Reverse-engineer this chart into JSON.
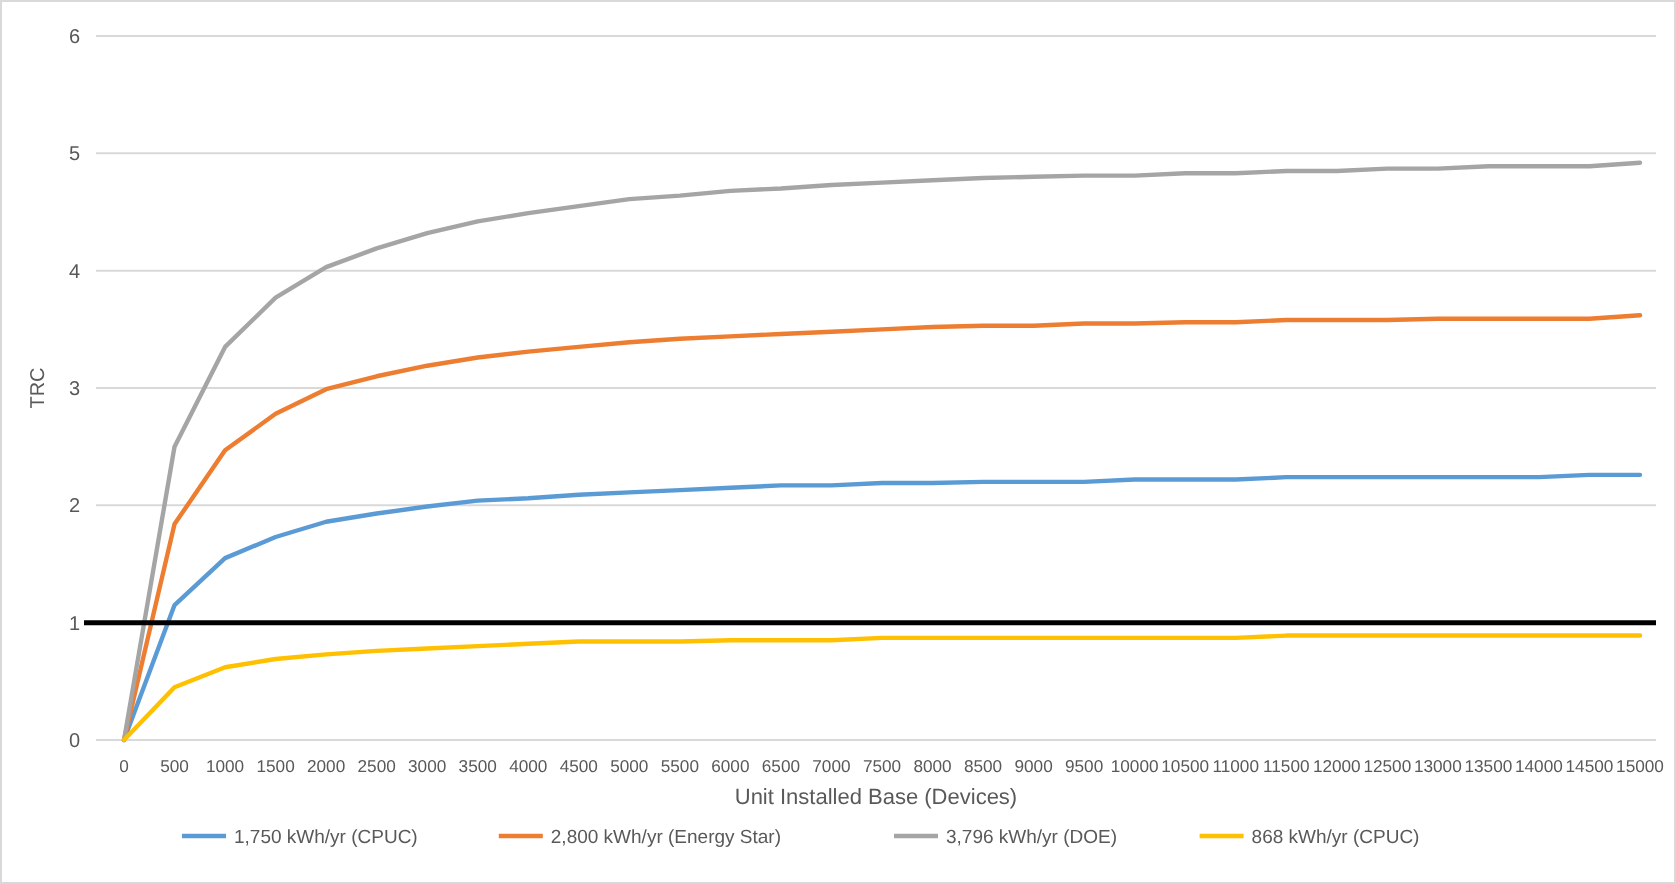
{
  "chart_data": {
    "type": "line",
    "xlabel": "Unit Installed Base (Devices)",
    "ylabel": "TRC",
    "categories": [
      "0",
      "500",
      "1000",
      "1500",
      "2000",
      "2500",
      "3000",
      "3500",
      "4000",
      "4500",
      "5000",
      "5500",
      "6000",
      "6500",
      "7000",
      "7500",
      "8000",
      "8500",
      "9000",
      "9500",
      "10000",
      "10500",
      "11000",
      "11500",
      "12000",
      "12500",
      "13000",
      "13500",
      "14000",
      "14500",
      "15000"
    ],
    "ylim": [
      0,
      6
    ],
    "yticks": [
      0,
      1,
      2,
      3,
      4,
      5,
      6
    ],
    "grid": "y",
    "legend": "bottom",
    "marker": "none",
    "line_style": "solid",
    "series": [
      {
        "name": "1,750 kWh/yr (CPUC)",
        "color": "#5b9bd5",
        "values": [
          0,
          1.15,
          1.55,
          1.73,
          1.86,
          1.93,
          1.99,
          2.04,
          2.06,
          2.09,
          2.11,
          2.13,
          2.15,
          2.17,
          2.17,
          2.19,
          2.19,
          2.2,
          2.2,
          2.2,
          2.22,
          2.22,
          2.22,
          2.24,
          2.24,
          2.24,
          2.24,
          2.24,
          2.24,
          2.26,
          2.26
        ]
      },
      {
        "name": "2,800 kWh/yr (Energy Star)",
        "color": "#ed7d31",
        "values": [
          0,
          1.84,
          2.47,
          2.78,
          2.99,
          3.1,
          3.19,
          3.26,
          3.31,
          3.35,
          3.39,
          3.42,
          3.44,
          3.46,
          3.48,
          3.5,
          3.52,
          3.53,
          3.53,
          3.55,
          3.55,
          3.56,
          3.56,
          3.58,
          3.58,
          3.58,
          3.59,
          3.59,
          3.59,
          3.59,
          3.62
        ]
      },
      {
        "name": "3,796 kWh/yr (DOE)",
        "color": "#a5a5a5",
        "values": [
          0,
          2.5,
          3.35,
          3.77,
          4.03,
          4.19,
          4.32,
          4.42,
          4.49,
          4.55,
          4.61,
          4.64,
          4.68,
          4.7,
          4.73,
          4.75,
          4.77,
          4.79,
          4.8,
          4.81,
          4.81,
          4.83,
          4.83,
          4.85,
          4.85,
          4.87,
          4.87,
          4.89,
          4.89,
          4.89,
          4.92
        ]
      },
      {
        "name": "868 kWh/yr (CPUC)",
        "color": "#ffc000",
        "values": [
          0,
          0.45,
          0.62,
          0.69,
          0.73,
          0.76,
          0.78,
          0.8,
          0.82,
          0.84,
          0.84,
          0.84,
          0.85,
          0.85,
          0.85,
          0.87,
          0.87,
          0.87,
          0.87,
          0.87,
          0.87,
          0.87,
          0.87,
          0.89,
          0.89,
          0.89,
          0.89,
          0.89,
          0.89,
          0.89,
          0.89
        ]
      }
    ],
    "ref_lines": [
      {
        "axis": "y",
        "value": 1,
        "color": "#000000"
      }
    ]
  }
}
